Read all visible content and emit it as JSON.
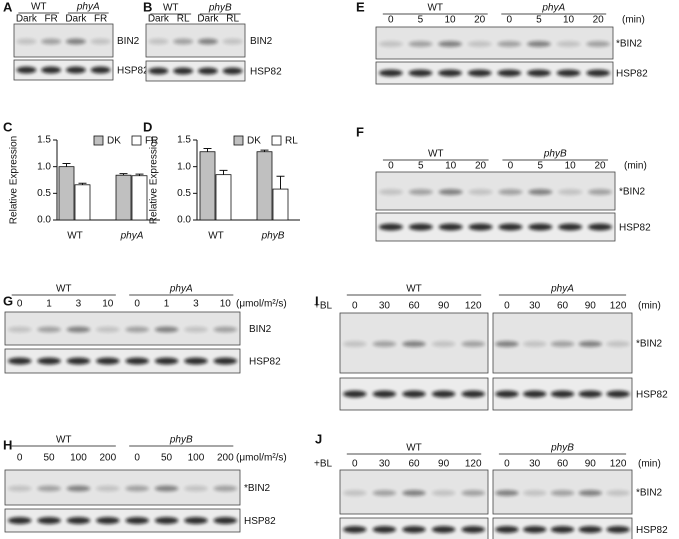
{
  "panels": {
    "A": {
      "label": "A",
      "groups": [
        {
          "name": "WT",
          "lanes": [
            "Dark",
            "FR"
          ]
        },
        {
          "name": "phyA",
          "lanes": [
            "Dark",
            "FR"
          ]
        }
      ],
      "blots": [
        "BIN2",
        "HSP82"
      ]
    },
    "B": {
      "label": "B",
      "groups": [
        {
          "name": "WT",
          "lanes": [
            "Dark",
            "RL"
          ]
        },
        {
          "name": "phyB",
          "lanes": [
            "Dark",
            "RL"
          ]
        }
      ],
      "blots": [
        "BIN2",
        "HSP82"
      ]
    },
    "E": {
      "label": "E",
      "groups": [
        {
          "name": "WT",
          "lanes": [
            "0",
            "5",
            "10",
            "20"
          ]
        },
        {
          "name": "phyA",
          "lanes": [
            "0",
            "5",
            "10",
            "20"
          ]
        }
      ],
      "unit": "(min)",
      "blots": [
        "*BIN2",
        "HSP82"
      ]
    },
    "F": {
      "label": "F",
      "groups": [
        {
          "name": "WT",
          "lanes": [
            "0",
            "5",
            "10",
            "20"
          ]
        },
        {
          "name": "phyB",
          "lanes": [
            "0",
            "5",
            "10",
            "20"
          ]
        }
      ],
      "unit": "(min)",
      "blots": [
        "*BIN2",
        "HSP82"
      ]
    },
    "G": {
      "label": "G",
      "groups": [
        {
          "name": "WT",
          "lanes": [
            "0",
            "1",
            "3",
            "10"
          ]
        },
        {
          "name": "phyA",
          "lanes": [
            "0",
            "1",
            "3",
            "10"
          ]
        }
      ],
      "unit": "(μmol/m²/s)",
      "blots": [
        "BIN2",
        "HSP82"
      ]
    },
    "H": {
      "label": "H",
      "groups": [
        {
          "name": "WT",
          "lanes": [
            "0",
            "50",
            "100",
            "200"
          ]
        },
        {
          "name": "phyB",
          "lanes": [
            "0",
            "50",
            "100",
            "200"
          ]
        }
      ],
      "unit": "(μmol/m²/s)",
      "blots": [
        "*BIN2",
        "HSP82"
      ]
    },
    "I": {
      "label": "I",
      "prefix": "+BL",
      "groups": [
        {
          "name": "WT",
          "lanes": [
            "0",
            "30",
            "60",
            "90",
            "120"
          ]
        },
        {
          "name": "phyA",
          "lanes": [
            "0",
            "30",
            "60",
            "90",
            "120"
          ]
        }
      ],
      "unit": "(min)",
      "blots": [
        "*BIN2",
        "HSP82"
      ]
    },
    "J": {
      "label": "J",
      "prefix": "+BL",
      "groups": [
        {
          "name": "WT",
          "lanes": [
            "0",
            "30",
            "60",
            "90",
            "120"
          ]
        },
        {
          "name": "phyB",
          "lanes": [
            "0",
            "30",
            "60",
            "90",
            "120"
          ]
        }
      ],
      "unit": "(min)",
      "blots": [
        "*BIN2",
        "HSP82"
      ]
    }
  },
  "chart_data": [
    {
      "type": "bar",
      "label": "C",
      "y_label": "Relative Expression",
      "categories": [
        "WT",
        "phyA"
      ],
      "series": [
        {
          "name": "DK",
          "color": "#c0c0c0",
          "values": [
            1.0,
            0.84
          ],
          "errors": [
            0.06,
            0.03
          ]
        },
        {
          "name": "FR",
          "color": "#ffffff",
          "values": [
            0.66,
            0.83
          ],
          "errors": [
            0.03,
            0.03
          ]
        }
      ],
      "ylim": [
        0,
        1.5
      ],
      "yticks": [
        {
          "value": 0,
          "label": "0.0"
        },
        0.5,
        {
          "value": 1,
          "label": "1.0"
        },
        1.5
      ]
    },
    {
      "type": "bar",
      "label": "D",
      "y_label": "Relative Expression",
      "categories": [
        "WT",
        "phyB"
      ],
      "series": [
        {
          "name": "DK",
          "color": "#c0c0c0",
          "values": [
            1.28,
            1.28
          ],
          "errors": [
            0.06,
            0.03
          ]
        },
        {
          "name": "RL",
          "color": "#ffffff",
          "values": [
            0.85,
            0.58
          ],
          "errors": [
            0.08,
            0.24
          ]
        }
      ],
      "ylim": [
        0,
        1.5
      ],
      "yticks": [
        {
          "value": 0,
          "label": "0.0"
        },
        0.5,
        {
          "value": 1,
          "label": "1.0"
        },
        1.5
      ]
    }
  ]
}
